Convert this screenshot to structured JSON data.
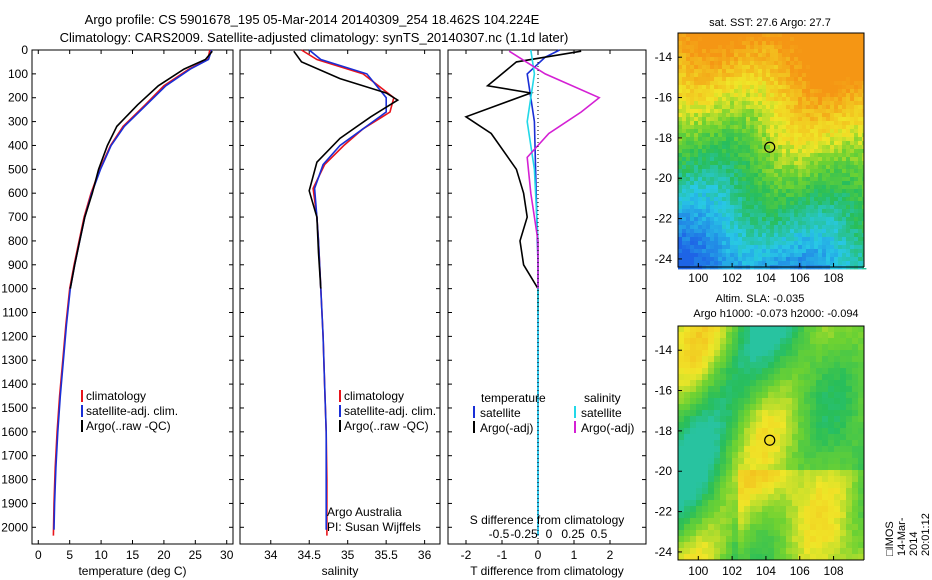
{
  "header": {
    "line1": "Argo profile: CS 5901678_195 05-Mar-2014 20140309_254 18.462S 104.224E",
    "line2": "Climatology: CARS2009. Satellite-adjusted climatology: synTS_20140307.nc (1.1d later)"
  },
  "side_label": "□IMOS 14-Mar-2014 20:01:12",
  "colors": {
    "climatology": "#e8141c",
    "satellite": "#1a2fd6",
    "argo": "#000000",
    "cyan": "#22d8e8",
    "magenta": "#d420d4"
  },
  "chart_data": [
    {
      "type": "line",
      "xlabel": "temperature (deg C)",
      "ylabel": "",
      "xlim": [
        -1,
        31
      ],
      "ylim": [
        2070,
        0
      ],
      "xticks": [
        0,
        5,
        10,
        15,
        20,
        25,
        30
      ],
      "yticks": [
        0,
        100,
        200,
        300,
        400,
        500,
        600,
        700,
        800,
        900,
        1000,
        1100,
        1200,
        1300,
        1400,
        1500,
        1600,
        1700,
        1800,
        1900,
        2000
      ],
      "legend": [
        "climatology",
        "satellite-adj. clim.",
        "Argo(..raw -QC)"
      ],
      "series": [
        {
          "name": "climatology",
          "color": "#e8141c",
          "x": [
            27.3,
            27.0,
            24.0,
            20.0,
            17.0,
            13.5,
            11.5,
            9.8,
            8.4,
            7.3,
            6.5,
            5.7,
            5.0,
            4.4,
            3.9,
            3.4,
            3.0,
            2.7,
            2.5,
            2.4
          ],
          "y": [
            0,
            40,
            80,
            150,
            230,
            320,
            400,
            500,
            600,
            700,
            800,
            900,
            1000,
            1150,
            1300,
            1450,
            1600,
            1750,
            1900,
            2035
          ]
        },
        {
          "name": "satellite-adj. clim.",
          "color": "#1a2fd6",
          "x": [
            27.6,
            27.1,
            24.2,
            20.3,
            17.2,
            13.7,
            11.6,
            9.9,
            8.5,
            7.4,
            6.6,
            5.8,
            5.1,
            4.5,
            4.0,
            3.5,
            3.1,
            2.8,
            2.6,
            2.5
          ],
          "y": [
            0,
            40,
            80,
            150,
            230,
            320,
            400,
            500,
            600,
            700,
            800,
            900,
            1000,
            1150,
            1300,
            1450,
            1600,
            1750,
            1900,
            2010
          ]
        },
        {
          "name": "Argo(..raw -QC)",
          "color": "#000000",
          "x": [
            27.7,
            26.6,
            23.2,
            19.1,
            15.8,
            12.5,
            11.0,
            9.6,
            8.6,
            7.4,
            6.6,
            5.8,
            5.1
          ],
          "y": [
            5,
            40,
            80,
            150,
            230,
            320,
            400,
            500,
            600,
            700,
            800,
            900,
            1000
          ]
        }
      ]
    },
    {
      "type": "line",
      "xlabel": "salinity",
      "xlim": [
        33.6,
        36.2
      ],
      "ylim": [
        2070,
        0
      ],
      "xticks": [
        34,
        34.5,
        35,
        35.5,
        36
      ],
      "legend": [
        "climatology",
        "satellite-adj. clim.",
        "Argo(..raw -QC)"
      ],
      "annotation": [
        "Argo Australia",
        "PI: Susan Wijffels"
      ],
      "series": [
        {
          "name": "climatology",
          "color": "#e8141c",
          "x": [
            34.4,
            34.6,
            35.2,
            35.6,
            35.55,
            35.2,
            34.95,
            34.7,
            34.55,
            34.6,
            34.62,
            34.65,
            34.68,
            34.7,
            34.72,
            34.73,
            34.73
          ],
          "y": [
            0,
            40,
            100,
            200,
            260,
            330,
            400,
            480,
            580,
            700,
            800,
            1000,
            1200,
            1400,
            1600,
            1800,
            2035
          ]
        },
        {
          "name": "satellite-adj. clim.",
          "color": "#1a2fd6",
          "x": [
            34.5,
            34.65,
            35.25,
            35.5,
            35.5,
            35.2,
            34.9,
            34.68,
            34.57,
            34.6,
            34.62,
            34.65,
            34.68,
            34.7,
            34.72,
            34.72,
            34.72
          ],
          "y": [
            0,
            40,
            100,
            200,
            260,
            330,
            400,
            480,
            580,
            700,
            800,
            1000,
            1200,
            1400,
            1600,
            1800,
            2010
          ]
        },
        {
          "name": "Argo(..raw -QC)",
          "color": "#000000",
          "x": [
            34.3,
            34.4,
            34.9,
            35.5,
            35.65,
            35.3,
            34.9,
            34.6,
            34.5,
            34.6,
            34.62,
            34.65
          ],
          "y": [
            5,
            50,
            120,
            180,
            210,
            280,
            370,
            470,
            590,
            700,
            850,
            1000
          ]
        }
      ]
    },
    {
      "type": "line",
      "xlabel": "T difference from climatology",
      "xlabel_top": "S difference from climatology",
      "xlim": [
        -2.5,
        3.0
      ],
      "ylim": [
        2070,
        0
      ],
      "xticks": [
        -2,
        -1,
        0,
        1,
        2
      ],
      "xticks_top_labels": [
        "-0.5",
        "-0.25",
        "0",
        "0.25",
        "0.5"
      ],
      "legend_groups": [
        {
          "heading": "temperature",
          "items": [
            "satellite",
            "Argo(-adj)"
          ]
        },
        {
          "heading": "salinity",
          "items": [
            "satellite",
            "Argo(-adj)"
          ]
        }
      ],
      "series": [
        {
          "name": "temperature satellite",
          "color": "#1a2fd6",
          "x": [
            0.6,
            0.2,
            -0.3,
            -0.1,
            -0.05,
            0.0,
            0.0,
            0.0,
            0.0
          ],
          "y": [
            0,
            30,
            100,
            300,
            600,
            900,
            1200,
            1600,
            2035
          ]
        },
        {
          "name": "temperature Argo(-adj)",
          "color": "#000000",
          "x": [
            1.2,
            -0.6,
            -1.4,
            -0.2,
            -2.0,
            -1.3,
            -0.6,
            -0.4,
            -0.3,
            -0.5,
            -0.4,
            0.0,
            0.0
          ],
          "y": [
            5,
            50,
            150,
            180,
            280,
            350,
            500,
            600,
            700,
            800,
            900,
            1000,
            1100
          ]
        },
        {
          "name": "salinity satellite",
          "color": "#22d8e8",
          "x": [
            -0.2,
            -0.1,
            -0.3,
            -0.1,
            0.0,
            0.0,
            0.0,
            0.0
          ],
          "y": [
            0,
            100,
            300,
            500,
            800,
            1200,
            1600,
            2035
          ]
        },
        {
          "name": "salinity Argo(-adj)",
          "color": "#d420d4",
          "x": [
            -0.8,
            0.2,
            1.7,
            1.2,
            0.3,
            -0.3,
            -0.2,
            0.0,
            0.0
          ],
          "y": [
            5,
            100,
            200,
            260,
            350,
            450,
            600,
            800,
            1000
          ]
        }
      ]
    },
    {
      "type": "heatmap",
      "title": "sat. SST: 27.6  Argo: 27.7",
      "xticks": [
        100,
        102,
        104,
        106,
        108
      ],
      "yticks": [
        -14,
        -16,
        -18,
        -20,
        -22,
        -24
      ],
      "xlim": [
        98.8,
        109.8
      ],
      "ylim": [
        -24.4,
        -12.8
      ],
      "marker": {
        "lon": 104.224,
        "lat": -18.462
      }
    },
    {
      "type": "heatmap",
      "title": "Altim. SLA: -0.035",
      "subtitle": "Argo h1000: -0.073  h2000: -0.094",
      "xticks": [
        100,
        102,
        104,
        106,
        108
      ],
      "yticks": [
        -14,
        -16,
        -18,
        -20,
        -22,
        -24
      ],
      "xlim": [
        98.8,
        109.8
      ],
      "ylim": [
        -24.4,
        -12.8
      ],
      "marker": {
        "lon": 104.224,
        "lat": -18.462
      }
    }
  ]
}
